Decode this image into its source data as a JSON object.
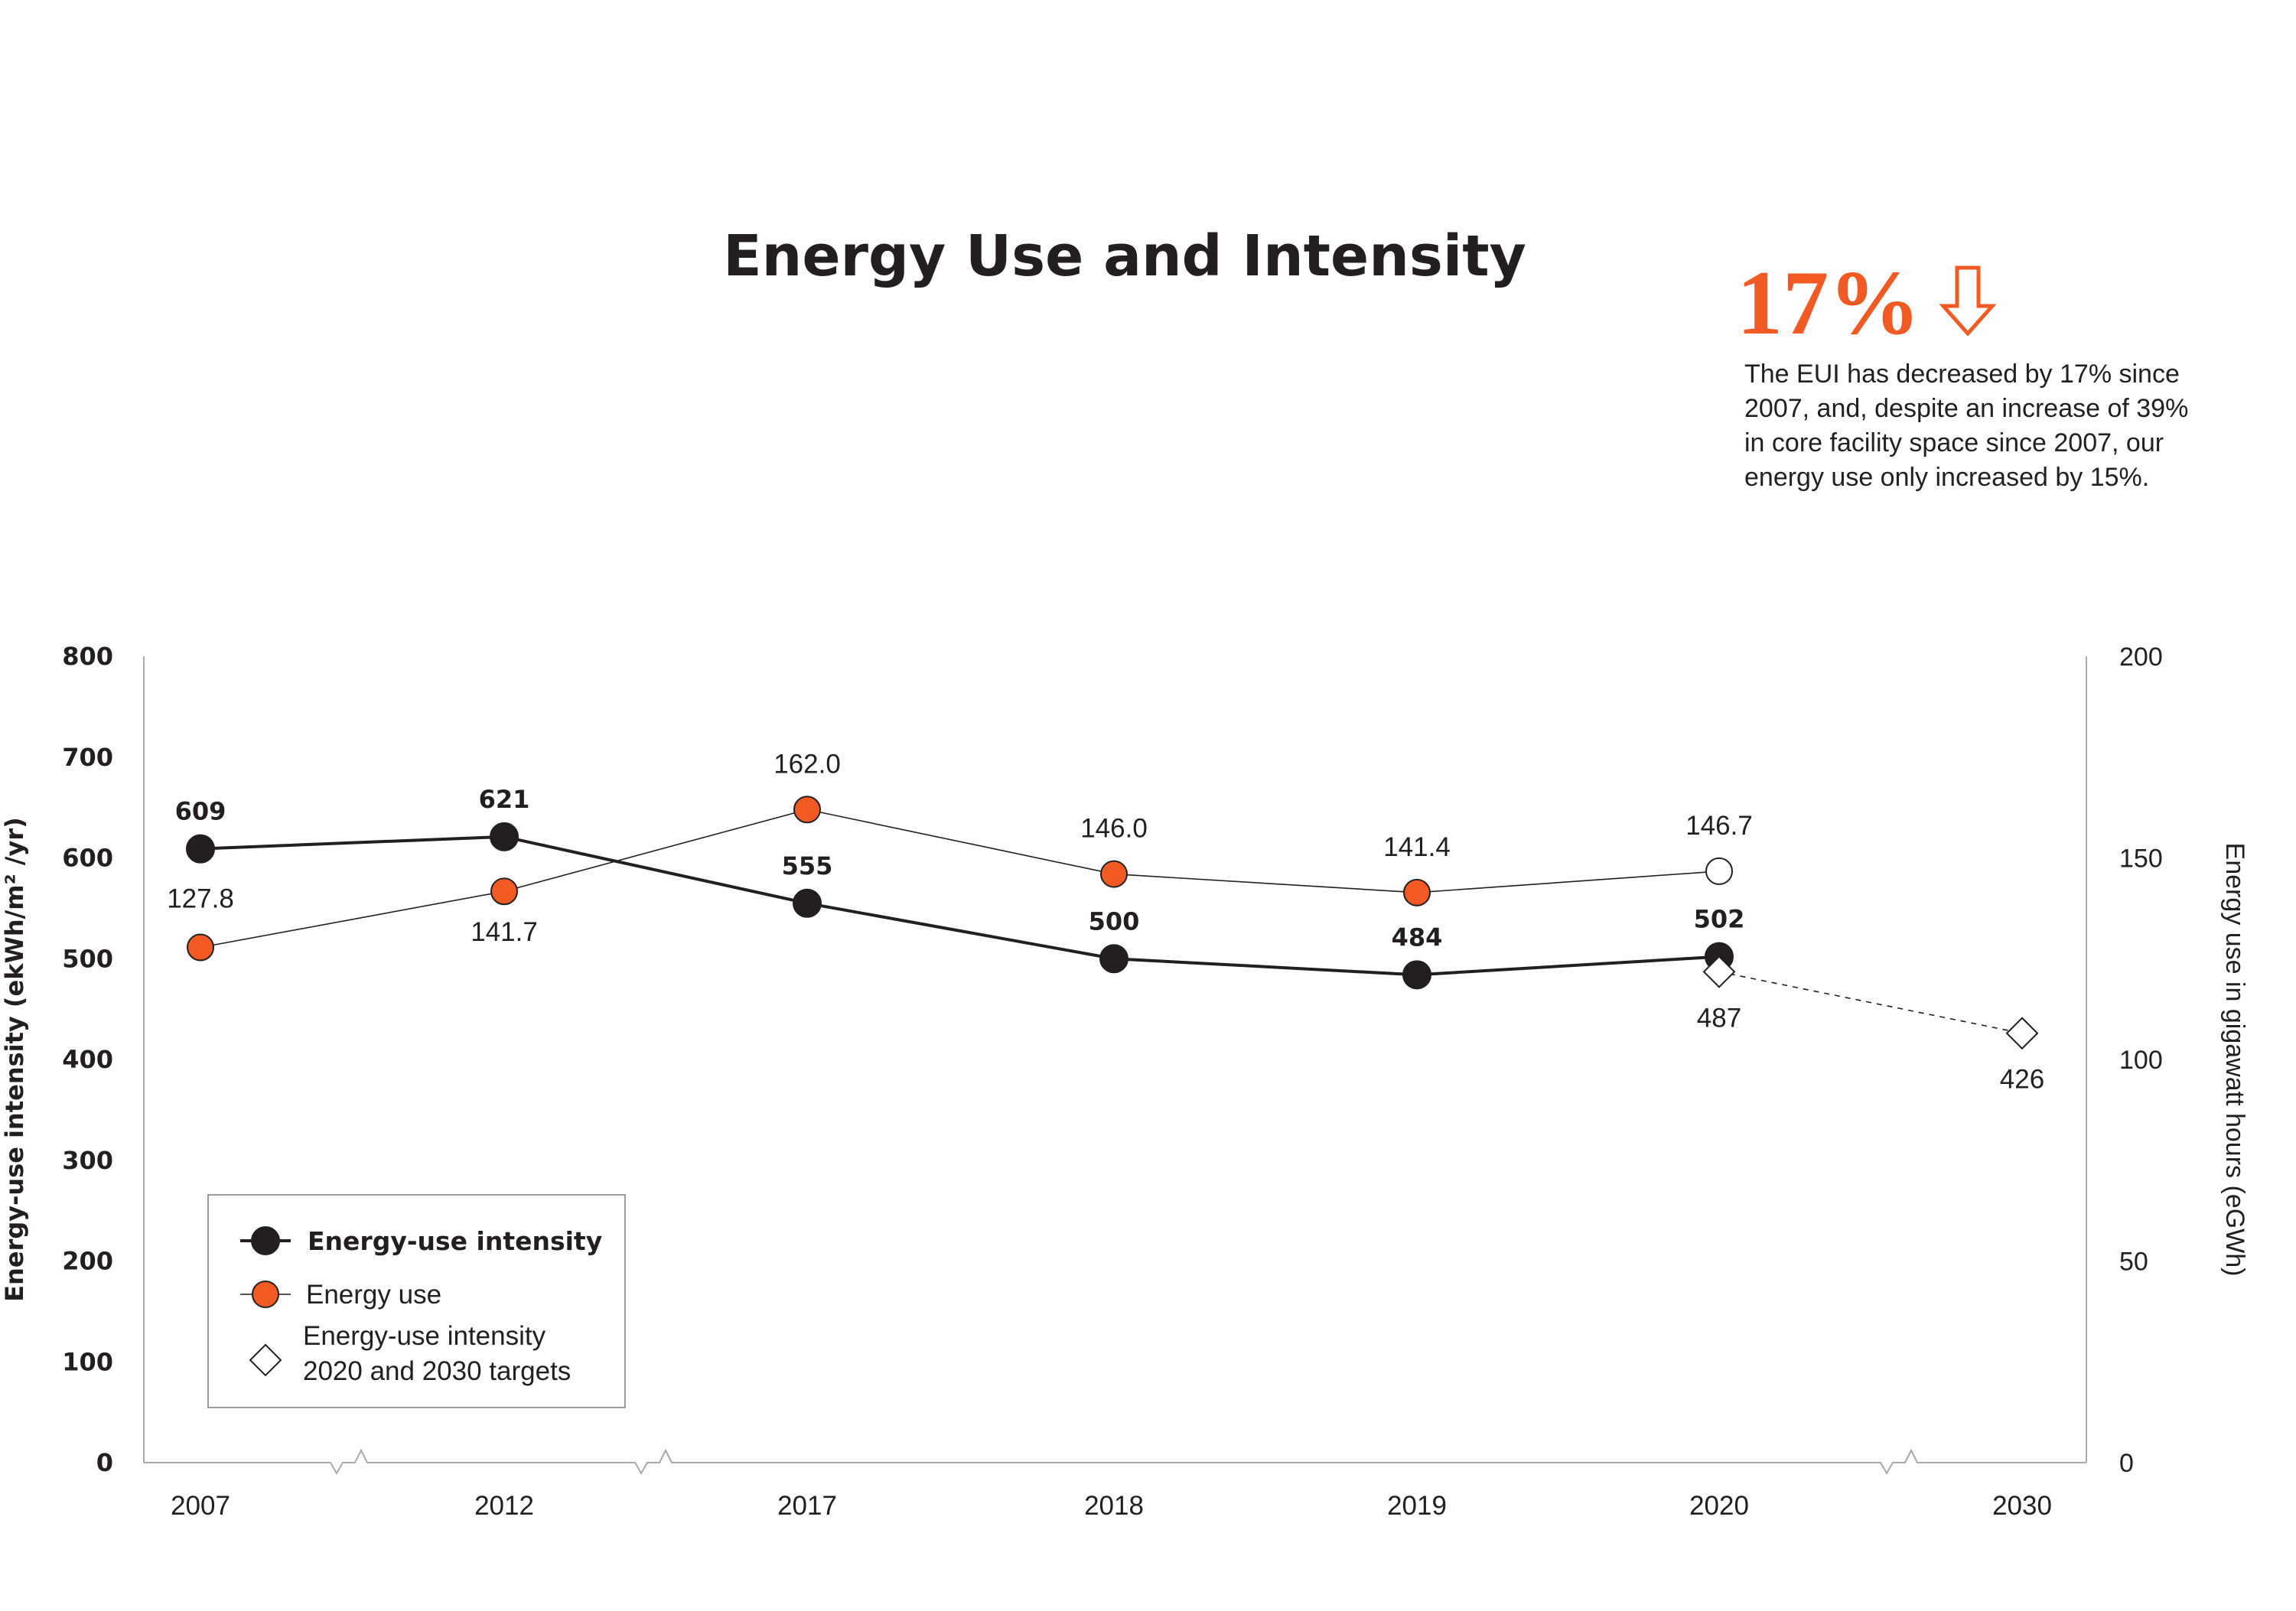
{
  "title": "Energy Use and Intensity",
  "callout": {
    "percent": "17%",
    "arrow_icon": "down-arrow-outline-icon",
    "lines": [
      "The EUI has decreased by 17% since",
      "2007, and, despite an increase of 39%",
      "in core facility space since 2007, our",
      "energy use only increased by 15%."
    ]
  },
  "colors": {
    "eui": "#231f20",
    "energy_use": "#f15a22",
    "accent": "#f15a22",
    "axis": "#a7a9ac"
  },
  "chart_data": {
    "type": "line",
    "x": [
      "2007",
      "2012",
      "2017",
      "2018",
      "2019",
      "2020",
      "2030"
    ],
    "x_axis_breaks_after": [
      "2007",
      "2012",
      "2020"
    ],
    "ylabel": "Energy-use intensity (ekWh/m² /yr)",
    "y2label": "Energy use in gigawatt hours (eGWh)",
    "ylim": [
      0,
      800
    ],
    "y2lim": [
      0,
      200
    ],
    "yticks": [
      "0",
      "100",
      "200",
      "300",
      "400",
      "500",
      "600",
      "700",
      "800"
    ],
    "y2ticks": [
      "0",
      "50",
      "100",
      "150",
      "200"
    ],
    "grid": false,
    "legend_position": "bottom-left",
    "series": [
      {
        "name": "Energy-use intensity",
        "axis": "left",
        "marker": "filled-circle",
        "color": "#231f20",
        "points": [
          {
            "x": "2007",
            "y": 609,
            "label": "609"
          },
          {
            "x": "2012",
            "y": 621,
            "label": "621"
          },
          {
            "x": "2017",
            "y": 555,
            "label": "555"
          },
          {
            "x": "2018",
            "y": 500,
            "label": "500"
          },
          {
            "x": "2019",
            "y": 484,
            "label": "484"
          },
          {
            "x": "2020",
            "y": 502,
            "label": "502"
          }
        ]
      },
      {
        "name": "Energy use",
        "axis": "right",
        "marker": "filled-circle",
        "color": "#f15a22",
        "points": [
          {
            "x": "2007",
            "y": 127.8,
            "label": "127.8"
          },
          {
            "x": "2012",
            "y": 141.7,
            "label": "141.7"
          },
          {
            "x": "2017",
            "y": 162.0,
            "label": "162.0"
          },
          {
            "x": "2018",
            "y": 146.0,
            "label": "146.0"
          },
          {
            "x": "2019",
            "y": 141.4,
            "label": "141.4"
          },
          {
            "x": "2020",
            "y": 146.7,
            "label": "146.7",
            "hollow": true
          }
        ]
      },
      {
        "name": "Energy-use intensity\n2020 and 2030 targets",
        "axis": "left",
        "marker": "hollow-diamond",
        "line": "dashed",
        "points": [
          {
            "x": "2020",
            "y": 487,
            "label": "487"
          },
          {
            "x": "2030",
            "y": 426,
            "label": "426"
          }
        ]
      }
    ],
    "legend": [
      {
        "label": "Energy-use intensity",
        "marker": "filled-circle",
        "color": "#231f20",
        "bold": true
      },
      {
        "label": "Energy use",
        "marker": "filled-circle",
        "color": "#f15a22",
        "bold": false
      },
      {
        "label_lines": [
          "Energy-use intensity",
          "2020 and 2030 targets"
        ],
        "marker": "hollow-diamond",
        "bold": false
      }
    ]
  }
}
